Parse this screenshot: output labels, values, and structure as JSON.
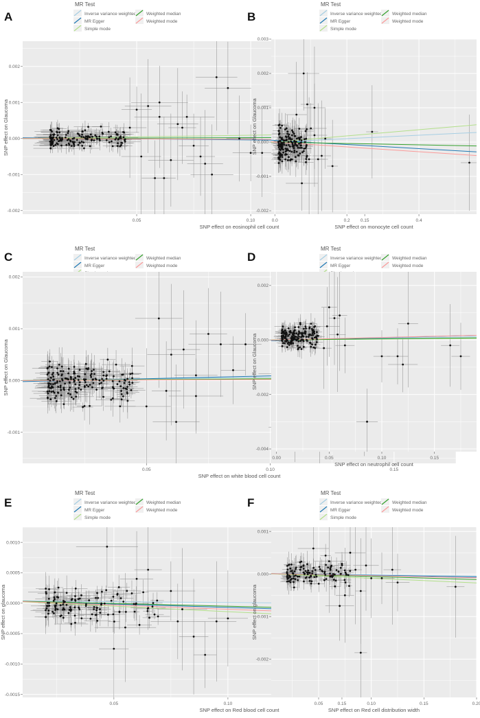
{
  "figure": {
    "legend_title": "MR Test",
    "methods": [
      {
        "name": "Inverse variance weighted",
        "color": "#a6cee3"
      },
      {
        "name": "MR Egger",
        "color": "#1f78b4"
      },
      {
        "name": "Simple mode",
        "color": "#b2df8a"
      },
      {
        "name": "Weighted median",
        "color": "#33a02c"
      },
      {
        "name": "Weighted mode",
        "color": "#fb9a99"
      }
    ],
    "panel_background": "#ebebeb",
    "grid_color": "#ffffff",
    "point_color": "#111111"
  },
  "chart_data": [
    {
      "panel": "A",
      "type": "scatter",
      "xlabel": "SNP effect on eosinophil cell count",
      "ylabel": "SNP effect on Glaucoma",
      "xlim": [
        0,
        0.19
      ],
      "ylim": [
        -0.0021,
        0.0027
      ],
      "xticks": [
        {
          "v": 0.05,
          "label": "0.05"
        },
        {
          "v": 0.1,
          "label": "0.10"
        },
        {
          "v": 0.15,
          "label": "0.15"
        }
      ],
      "yticks": [
        {
          "v": -0.002,
          "label": "-0.002"
        },
        {
          "v": -0.001,
          "label": "-0.001"
        },
        {
          "v": 0.0,
          "label": "0.000"
        },
        {
          "v": 0.001,
          "label": "0.001"
        },
        {
          "v": 0.002,
          "label": "0.002"
        }
      ],
      "lines": [
        {
          "method": "Inverse variance weighted",
          "slope": 0.0003
        },
        {
          "method": "MR Egger",
          "slope": -0.0006,
          "intercept": 2e-05
        },
        {
          "method": "Simple mode",
          "slope": 0.0009
        },
        {
          "method": "Weighted median",
          "slope": 0.0002
        },
        {
          "method": "Weighted mode",
          "slope": -0.0002
        }
      ],
      "cluster": {
        "x": [
          0.012,
          0.045
        ],
        "y": [
          -0.0004,
          0.0004
        ],
        "n": 150
      },
      "points": [
        [
          0.05,
          0.0008
        ],
        [
          0.055,
          0.0009
        ],
        [
          0.06,
          0.001
        ],
        [
          0.052,
          -0.0005
        ],
        [
          0.058,
          -0.0011
        ],
        [
          0.065,
          -0.0006
        ],
        [
          0.07,
          0.0003
        ],
        [
          0.075,
          -0.0002
        ],
        [
          0.08,
          -0.0007
        ],
        [
          0.085,
          0.0017
        ],
        [
          0.09,
          0.0014
        ],
        [
          0.095,
          0.0
        ],
        [
          0.1,
          -0.0004
        ],
        [
          0.083,
          -0.001
        ],
        [
          0.062,
          -0.0011
        ],
        [
          0.12,
          0.0009
        ],
        [
          0.124,
          0.0
        ],
        [
          0.178,
          0.0003
        ],
        [
          0.068,
          0.0004
        ],
        [
          0.072,
          0.0006
        ],
        [
          0.105,
          -0.0004
        ],
        [
          0.06,
          0.0006
        ],
        [
          0.047,
          0.0003
        ],
        [
          0.078,
          -0.0005
        ]
      ]
    },
    {
      "panel": "B",
      "type": "scatter",
      "xlabel": "SNP effect on monocyte cell count",
      "ylabel": "SNP effect on Glaucoma",
      "xlim": [
        -0.01,
        0.56
      ],
      "ylim": [
        -0.0021,
        0.003
      ],
      "xticks": [
        {
          "v": 0.0,
          "label": "0.0"
        },
        {
          "v": 0.2,
          "label": "0.2"
        },
        {
          "v": 0.4,
          "label": "0.4"
        }
      ],
      "yticks": [
        {
          "v": -0.002,
          "label": "-0.002"
        },
        {
          "v": -0.001,
          "label": "-0.001"
        },
        {
          "v": 0.0,
          "label": "0.000"
        },
        {
          "v": 0.001,
          "label": "0.001"
        },
        {
          "v": 0.002,
          "label": "0.002"
        },
        {
          "v": 0.003,
          "label": "0.003"
        }
      ],
      "lines": [
        {
          "method": "Inverse variance weighted",
          "slope": 0.0005
        },
        {
          "method": "MR Egger",
          "slope": -0.0006,
          "intercept": 5e-05
        },
        {
          "method": "Simple mode",
          "slope": 0.0009
        },
        {
          "method": "Weighted median",
          "slope": -0.0002
        },
        {
          "method": "Weighted mode",
          "slope": -0.0007
        }
      ],
      "cluster": {
        "x": [
          0.01,
          0.09
        ],
        "y": [
          -0.0008,
          0.0006
        ],
        "n": 170
      },
      "points": [
        [
          0.08,
          0.002
        ],
        [
          0.09,
          0.0011
        ],
        [
          0.1,
          0.0004
        ],
        [
          0.11,
          0.001
        ],
        [
          0.12,
          -0.0005
        ],
        [
          0.13,
          -0.0004
        ],
        [
          0.16,
          -0.0007
        ],
        [
          0.14,
          0.0001
        ],
        [
          0.075,
          -0.0012
        ],
        [
          0.095,
          -0.0005
        ],
        [
          0.27,
          0.0003
        ],
        [
          0.54,
          -0.0006
        ],
        [
          0.11,
          0.0002
        ],
        [
          0.06,
          0.0008
        ]
      ]
    },
    {
      "panel": "C",
      "type": "scatter",
      "xlabel": "SNP effect on white blood cell count",
      "ylabel": "SNP effect on Glaucoma",
      "xlim": [
        0,
        0.175
      ],
      "ylim": [
        -0.0016,
        0.0021
      ],
      "xticks": [
        {
          "v": 0.05,
          "label": "0.05"
        },
        {
          "v": 0.1,
          "label": "0.10"
        },
        {
          "v": 0.15,
          "label": "0.15"
        }
      ],
      "yticks": [
        {
          "v": -0.001,
          "label": "-0.001"
        },
        {
          "v": 0.0,
          "label": "0.000"
        },
        {
          "v": 0.001,
          "label": "0.001"
        },
        {
          "v": 0.002,
          "label": "0.002"
        }
      ],
      "lines": [
        {
          "method": "Inverse variance weighted",
          "slope": 0.0006
        },
        {
          "method": "MR Egger",
          "slope": 0.0011,
          "intercept": -2e-05
        },
        {
          "method": "Simple mode",
          "slope": 0.0004
        },
        {
          "method": "Weighted median",
          "slope": 0.0003
        },
        {
          "method": "Weighted mode",
          "slope": 0.0002
        }
      ],
      "cluster": {
        "x": [
          0.01,
          0.045
        ],
        "y": [
          -0.0006,
          0.0005
        ],
        "n": 190
      },
      "points": [
        [
          0.055,
          0.0012
        ],
        [
          0.06,
          0.0005
        ],
        [
          0.065,
          0.0006
        ],
        [
          0.07,
          -0.0003
        ],
        [
          0.075,
          0.0009
        ],
        [
          0.08,
          0.0007
        ],
        [
          0.05,
          -0.0005
        ],
        [
          0.058,
          -0.0002
        ],
        [
          0.062,
          -0.0008
        ],
        [
          0.09,
          0.0007
        ],
        [
          0.105,
          0.00013
        ],
        [
          0.11,
          -0.0009
        ],
        [
          0.12,
          -0.0005
        ],
        [
          0.125,
          0.00064
        ],
        [
          0.138,
          -0.00015
        ],
        [
          0.152,
          -0.0005
        ],
        [
          0.16,
          -0.0005
        ],
        [
          0.07,
          0.0001
        ],
        [
          0.085,
          0.0002
        ]
      ]
    },
    {
      "panel": "D",
      "type": "scatter",
      "xlabel": "SNP effect on neutrophil cell count",
      "ylabel": "SNP effect on Glaucoma",
      "xlim": [
        -0.005,
        0.19
      ],
      "ylim": [
        -0.0041,
        0.0025
      ],
      "xticks": [
        {
          "v": 0.0,
          "label": "0.00"
        },
        {
          "v": 0.05,
          "label": "0.05"
        },
        {
          "v": 0.1,
          "label": "0.10"
        },
        {
          "v": 0.15,
          "label": "0.15"
        }
      ],
      "yticks": [
        {
          "v": -0.004,
          "label": "-0.004"
        },
        {
          "v": -0.002,
          "label": "-0.002"
        },
        {
          "v": 0.0,
          "label": "0.000"
        },
        {
          "v": 0.002,
          "label": "0.002"
        }
      ],
      "lines": [
        {
          "method": "Inverse variance weighted",
          "slope": 0.0006
        },
        {
          "method": "MR Egger",
          "slope": 0.001,
          "intercept": -2e-05
        },
        {
          "method": "Simple mode",
          "slope": 0.0003
        },
        {
          "method": "Weighted median",
          "slope": 0.0004
        },
        {
          "method": "Weighted mode",
          "slope": 0.0009
        }
      ],
      "cluster": {
        "x": [
          0.005,
          0.04
        ],
        "y": [
          -0.0005,
          0.0007
        ],
        "n": 170
      },
      "points": [
        [
          0.05,
          0.0012
        ],
        [
          0.055,
          0.0008
        ],
        [
          0.06,
          0.0009
        ],
        [
          0.045,
          -0.0003
        ],
        [
          0.048,
          0.0005
        ],
        [
          0.086,
          -0.003
        ],
        [
          0.1,
          -0.0006
        ],
        [
          0.115,
          -0.0006
        ],
        [
          0.12,
          -0.0009
        ],
        [
          0.125,
          0.0006
        ],
        [
          0.165,
          -0.0002
        ],
        [
          0.175,
          -0.0006
        ],
        [
          0.065,
          -0.0002
        ],
        [
          0.058,
          0.0002
        ]
      ]
    },
    {
      "panel": "E",
      "type": "scatter",
      "xlabel": "SNP effect on Red blood cell count",
      "ylabel": "SNP effect on glaucoma",
      "xlim": [
        0.01,
        0.2
      ],
      "ylim": [
        -0.00155,
        0.00125
      ],
      "xticks": [
        {
          "v": 0.05,
          "label": "0.05"
        },
        {
          "v": 0.1,
          "label": "0.10"
        },
        {
          "v": 0.15,
          "label": "0.15"
        }
      ],
      "yticks": [
        {
          "v": -0.0015,
          "label": "-0.0015"
        },
        {
          "v": -0.001,
          "label": "-0.0010"
        },
        {
          "v": -0.0005,
          "label": "-0.0005"
        },
        {
          "v": 0.0,
          "label": "0.0000"
        },
        {
          "v": 0.0005,
          "label": "0.0005"
        },
        {
          "v": 0.001,
          "label": "0.0010"
        }
      ],
      "lines": [
        {
          "method": "Inverse variance weighted",
          "slope": -0.0003,
          "intercept": 4e-05
        },
        {
          "method": "MR Egger",
          "slope": -0.0011,
          "intercept": 4e-05
        },
        {
          "method": "Simple mode",
          "slope": -0.0018,
          "intercept": 4e-05
        },
        {
          "method": "Weighted median",
          "slope": -0.0009,
          "intercept": 4e-05
        },
        {
          "method": "Weighted mode",
          "slope": -0.0014,
          "intercept": 4e-05
        }
      ],
      "cluster": {
        "x": [
          0.02,
          0.07
        ],
        "y": [
          -0.00045,
          0.0004
        ],
        "n": 120
      },
      "points": [
        [
          0.065,
          0.00055
        ],
        [
          0.06,
          0.0004
        ],
        [
          0.047,
          0.00093
        ],
        [
          0.05,
          -0.00075
        ],
        [
          0.078,
          -0.0003
        ],
        [
          0.085,
          -0.00055
        ],
        [
          0.09,
          -0.00085
        ],
        [
          0.095,
          -0.0003
        ],
        [
          0.1,
          -0.00025
        ],
        [
          0.08,
          -0.0001
        ],
        [
          0.128,
          -0.0001
        ],
        [
          0.185,
          -0.0001
        ],
        [
          0.075,
          0.0002
        ],
        [
          0.055,
          -0.0004
        ]
      ]
    },
    {
      "panel": "F",
      "type": "scatter",
      "xlabel": "SNP effect on Red cell distribution width",
      "ylabel": "SNP effect on glaucoma",
      "xlim": [
        0.005,
        0.2
      ],
      "ylim": [
        -0.0029,
        0.0011
      ],
      "xticks": [
        {
          "v": 0.05,
          "label": "0.05"
        },
        {
          "v": 0.1,
          "label": "0.10"
        },
        {
          "v": 0.15,
          "label": "0.15"
        },
        {
          "v": 0.2,
          "label": "0.20"
        }
      ],
      "yticks": [
        {
          "v": -0.002,
          "label": "-0.002"
        },
        {
          "v": -0.001,
          "label": "-0.001"
        },
        {
          "v": 0.0,
          "label": "0.000"
        },
        {
          "v": 0.001,
          "label": "0.001"
        }
      ],
      "lines": [
        {
          "method": "Inverse variance weighted",
          "slope": -0.0003,
          "intercept": 1e-05
        },
        {
          "method": "MR Egger",
          "slope": -0.0004,
          "intercept": 1e-05
        },
        {
          "method": "Simple mode",
          "slope": -0.0011,
          "intercept": 1e-05
        },
        {
          "method": "Weighted median",
          "slope": -0.0007,
          "intercept": 1e-05
        },
        {
          "method": "Weighted mode",
          "slope": -0.0005,
          "intercept": 1e-05
        }
      ],
      "cluster": {
        "x": [
          0.02,
          0.08
        ],
        "y": [
          -0.0004,
          0.0005
        ],
        "n": 120
      },
      "points": [
        [
          0.045,
          0.0006
        ],
        [
          0.08,
          0.0005
        ],
        [
          0.075,
          -0.0005
        ],
        [
          0.07,
          -0.00075
        ],
        [
          0.09,
          -0.0004
        ],
        [
          0.095,
          0.0002
        ],
        [
          0.1,
          -0.0001
        ],
        [
          0.11,
          -0.0001
        ],
        [
          0.12,
          0.0001
        ],
        [
          0.125,
          -0.0002
        ],
        [
          0.09,
          -0.00185
        ],
        [
          0.18,
          -0.0003
        ],
        [
          0.06,
          0.0003
        ],
        [
          0.085,
          0.0001
        ]
      ]
    }
  ]
}
